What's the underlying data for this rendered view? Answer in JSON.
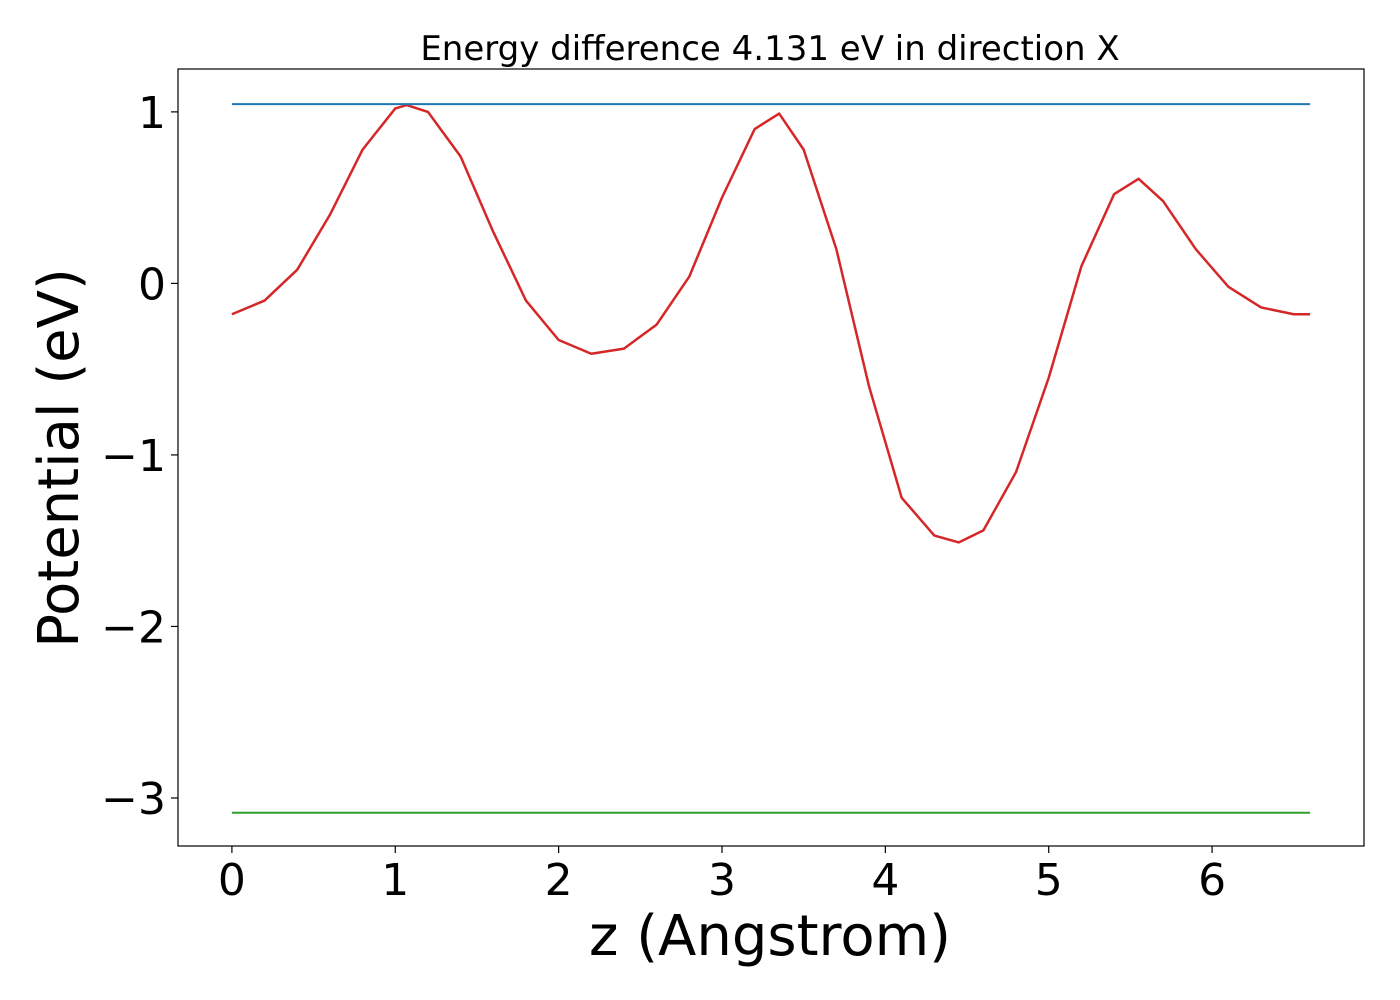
{
  "chart_data": {
    "type": "line",
    "title": "Energy difference 4.131 eV in direction X",
    "xlabel": "z (Angstrom)",
    "ylabel": "Potential (eV)",
    "xlim": [
      -0.33,
      6.93
    ],
    "ylim": [
      -3.28,
      1.25
    ],
    "xticks": [
      0,
      1,
      2,
      3,
      4,
      5,
      6
    ],
    "xtick_labels": [
      "0",
      "1",
      "2",
      "3",
      "4",
      "5",
      "6"
    ],
    "yticks": [
      1,
      0,
      -1,
      -2,
      -3
    ],
    "ytick_labels": [
      "1",
      "0",
      "−1",
      "−2",
      "−3"
    ],
    "grid": false,
    "series": [
      {
        "color": "#d62728",
        "x": [
          0.0,
          0.2,
          0.4,
          0.6,
          0.8,
          1.0,
          1.07,
          1.2,
          1.4,
          1.6,
          1.8,
          2.0,
          2.2,
          2.4,
          2.6,
          2.8,
          3.0,
          3.2,
          3.35,
          3.5,
          3.7,
          3.9,
          4.1,
          4.3,
          4.45,
          4.6,
          4.8,
          5.0,
          5.2,
          5.4,
          5.55,
          5.7,
          5.9,
          6.1,
          6.3,
          6.5,
          6.6
        ],
        "y": [
          -0.18,
          -0.1,
          0.08,
          0.4,
          0.78,
          1.02,
          1.04,
          1.0,
          0.74,
          0.3,
          -0.1,
          -0.33,
          -0.41,
          -0.38,
          -0.24,
          0.04,
          0.5,
          0.9,
          0.99,
          0.78,
          0.2,
          -0.6,
          -1.25,
          -1.47,
          -1.51,
          -1.44,
          -1.1,
          -0.55,
          0.1,
          0.52,
          0.61,
          0.48,
          0.2,
          -0.02,
          -0.14,
          -0.18,
          -0.18
        ]
      },
      {
        "color": "#1f77b4",
        "x": [
          0.0,
          6.6
        ],
        "y": [
          1.045,
          1.045
        ]
      },
      {
        "color": "#2ca02c",
        "x": [
          0.0,
          6.6
        ],
        "y": [
          -3.086,
          -3.086
        ]
      }
    ]
  }
}
